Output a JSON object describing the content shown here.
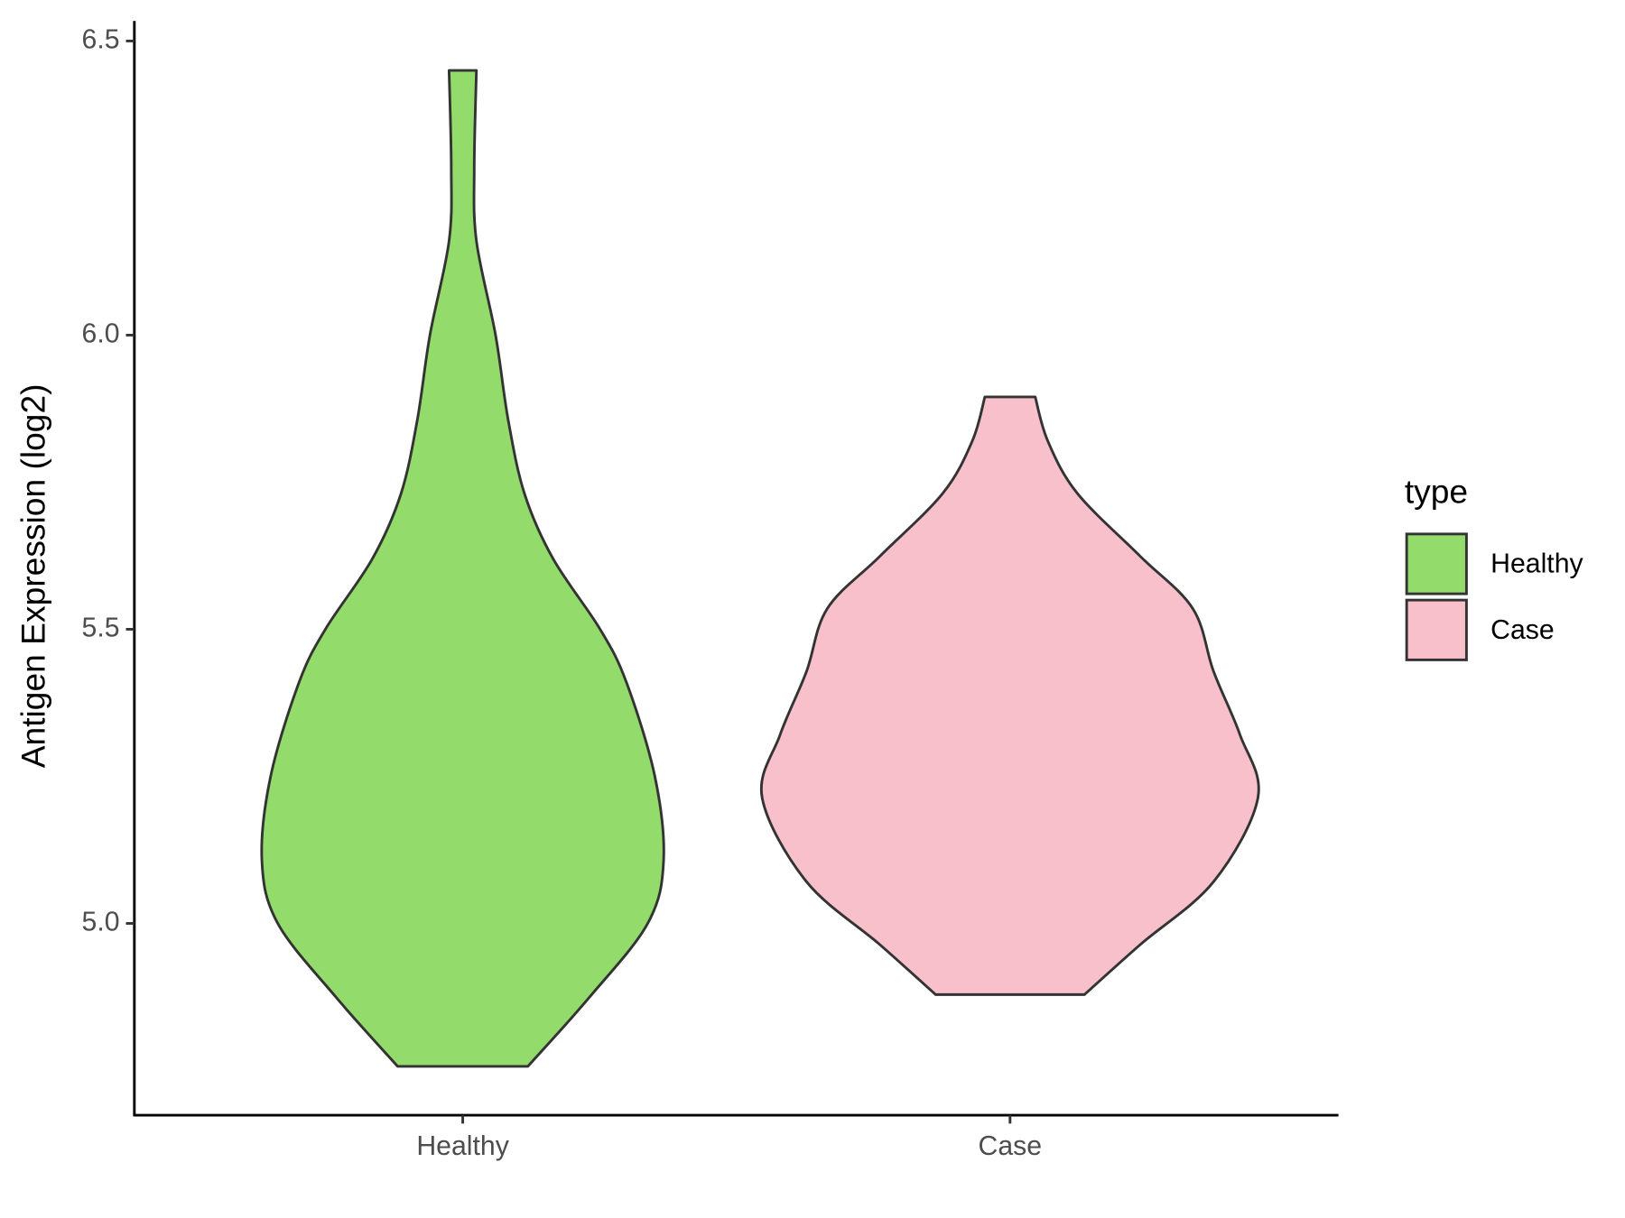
{
  "chart_data": {
    "type": "violin",
    "y_label": "Antigen Expression (log2)",
    "categories": [
      "Healthy",
      "Case"
    ],
    "series": [
      {
        "name": "Healthy",
        "color": "#93dc6b",
        "y": [
          4.757,
          4.875,
          5.0,
          5.107,
          5.25,
          5.41,
          5.5,
          5.62,
          5.73,
          5.856,
          6.0,
          6.16,
          6.284,
          6.45
        ],
        "half_width": [
          0.119,
          0.232,
          0.338,
          0.367,
          0.351,
          0.299,
          0.251,
          0.165,
          0.113,
          0.083,
          0.06,
          0.025,
          0.021,
          0.025
        ]
      },
      {
        "name": "Case",
        "color": "#f7c0cb",
        "y": [
          4.879,
          4.964,
          5.071,
          5.214,
          5.321,
          5.428,
          5.535,
          5.624,
          5.731,
          5.82,
          5.895
        ],
        "half_width": [
          0.136,
          0.238,
          0.372,
          0.453,
          0.42,
          0.372,
          0.334,
          0.238,
          0.123,
          0.069,
          0.046
        ]
      }
    ],
    "ylim": [
      4.674,
      6.534
    ],
    "yticks": [
      {
        "value": 5,
        "label": "5.0"
      },
      5.5,
      {
        "value": 6,
        "label": "6.0"
      },
      6.5
    ],
    "legend_title": "type",
    "legend": "right"
  }
}
